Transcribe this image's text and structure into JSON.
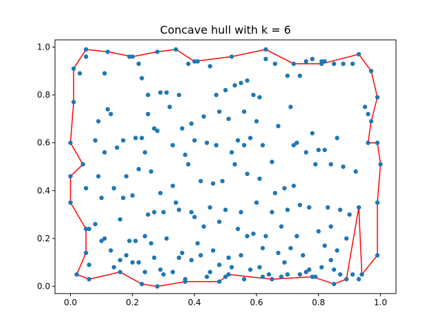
{
  "chart_data": {
    "type": "scatter",
    "title": "Concave hull with k = 6",
    "xlabel": "",
    "ylabel": "",
    "xlim": [
      -0.05,
      1.05
    ],
    "ylim": [
      -0.03,
      1.03
    ],
    "xticks": [
      "0.0",
      "0.2",
      "0.4",
      "0.6",
      "0.8",
      "1.0"
    ],
    "yticks": [
      "0.0",
      "0.2",
      "0.4",
      "0.6",
      "0.8",
      "1.0"
    ],
    "grid": false,
    "legend": "none",
    "colors": {
      "points": "#1f77b4",
      "hull": "#ff0000"
    },
    "series": [
      {
        "type": "line",
        "closed": true,
        "x": [
          0.05,
          0.12,
          0.2,
          0.28,
          0.34,
          0.4,
          0.52,
          0.63,
          0.72,
          0.81,
          0.93,
          0.97,
          0.99,
          0.97,
          0.96,
          0.99,
          1.0,
          0.99,
          0.99,
          0.94,
          0.93,
          0.89,
          0.85,
          0.78,
          0.65,
          0.51,
          0.48,
          0.37,
          0.28,
          0.23,
          0.16,
          0.06,
          0.02,
          0.05,
          0.05,
          0.0,
          0.0,
          0.04,
          0.0,
          0.01,
          0.01,
          0.05
        ],
        "y": [
          0.99,
          0.98,
          0.96,
          0.98,
          0.99,
          0.94,
          0.96,
          0.99,
          0.93,
          0.93,
          0.97,
          0.9,
          0.79,
          0.69,
          0.6,
          0.6,
          0.51,
          0.35,
          0.13,
          0.05,
          0.33,
          0.03,
          0.01,
          0.04,
          0.03,
          0.05,
          0.02,
          0.02,
          0.0,
          0.01,
          0.06,
          0.03,
          0.05,
          0.14,
          0.24,
          0.35,
          0.46,
          0.51,
          0.6,
          0.77,
          0.91,
          0.99
        ]
      },
      {
        "type": "scatter",
        "x": [
          0.05,
          0.12,
          0.2,
          0.28,
          0.34,
          0.4,
          0.52,
          0.63,
          0.72,
          0.81,
          0.93,
          0.97,
          0.99,
          0.97,
          0.96,
          0.99,
          1.0,
          0.99,
          0.99,
          0.94,
          0.93,
          0.89,
          0.85,
          0.78,
          0.65,
          0.51,
          0.48,
          0.37,
          0.28,
          0.23,
          0.16,
          0.06,
          0.02,
          0.05,
          0.05,
          0.0,
          0.0,
          0.04,
          0.0,
          0.01,
          0.01,
          0.05,
          0.05,
          0.03,
          0.11,
          0.19,
          0.22,
          0.23,
          0.25,
          0.29,
          0.31,
          0.35,
          0.38,
          0.41,
          0.45,
          0.47,
          0.5,
          0.53,
          0.55,
          0.57,
          0.59,
          0.61,
          0.63,
          0.66,
          0.7,
          0.74,
          0.76,
          0.78,
          0.81,
          0.82,
          0.85,
          0.88,
          0.91,
          0.12,
          0.13,
          0.09,
          0.17,
          0.23,
          0.25,
          0.27,
          0.32,
          0.36,
          0.39,
          0.43,
          0.48,
          0.51,
          0.54,
          0.56,
          0.6,
          0.67,
          0.71,
          0.73,
          0.8,
          0.95,
          0.96,
          0.08,
          0.11,
          0.15,
          0.21,
          0.24,
          0.28,
          0.33,
          0.37,
          0.4,
          0.44,
          0.47,
          0.52,
          0.56,
          0.58,
          0.62,
          0.65,
          0.72,
          0.78,
          0.82,
          0.86,
          0.09,
          0.18,
          0.22,
          0.26,
          0.29,
          0.33,
          0.38,
          0.42,
          0.46,
          0.49,
          0.53,
          0.57,
          0.61,
          0.66,
          0.69,
          0.72,
          0.76,
          0.79,
          0.84,
          0.88,
          0.92,
          0.05,
          0.1,
          0.14,
          0.17,
          0.2,
          0.25,
          0.3,
          0.35,
          0.4,
          0.45,
          0.5,
          0.55,
          0.6,
          0.65,
          0.7,
          0.74,
          0.77,
          0.83,
          0.87,
          0.9,
          0.08,
          0.11,
          0.16,
          0.19,
          0.24,
          0.27,
          0.34,
          0.39,
          0.43,
          0.48,
          0.54,
          0.59,
          0.63,
          0.68,
          0.73,
          0.8,
          0.84,
          0.89,
          0.06,
          0.13,
          0.18,
          0.21,
          0.26,
          0.31,
          0.36,
          0.41,
          0.46,
          0.51,
          0.57,
          0.62,
          0.67,
          0.71,
          0.75,
          0.82,
          0.86,
          0.1,
          0.16,
          0.22,
          0.29,
          0.35,
          0.42,
          0.48,
          0.55,
          0.61,
          0.69,
          0.77,
          0.84,
          0.06,
          0.14,
          0.2,
          0.27,
          0.33,
          0.39,
          0.45,
          0.52,
          0.58,
          0.64,
          0.7,
          0.76,
          0.81,
          0.85,
          0.91,
          0.24,
          0.3,
          0.37,
          0.44,
          0.5,
          0.56,
          0.62,
          0.68,
          0.74,
          0.79,
          0.87,
          0.93
        ],
        "y": [
          0.99,
          0.98,
          0.96,
          0.98,
          0.99,
          0.94,
          0.96,
          0.99,
          0.93,
          0.93,
          0.97,
          0.9,
          0.79,
          0.69,
          0.6,
          0.6,
          0.51,
          0.35,
          0.13,
          0.05,
          0.33,
          0.03,
          0.01,
          0.04,
          0.03,
          0.05,
          0.02,
          0.02,
          0.0,
          0.01,
          0.06,
          0.03,
          0.05,
          0.14,
          0.24,
          0.35,
          0.46,
          0.51,
          0.6,
          0.77,
          0.91,
          0.99,
          0.96,
          0.89,
          0.89,
          0.96,
          0.93,
          0.87,
          0.8,
          0.81,
          0.81,
          0.8,
          0.93,
          0.94,
          0.92,
          0.8,
          0.82,
          0.84,
          0.85,
          0.86,
          0.8,
          0.79,
          0.95,
          0.93,
          0.88,
          0.88,
          0.94,
          0.95,
          0.94,
          0.94,
          0.93,
          0.93,
          0.93,
          0.74,
          0.72,
          0.69,
          0.61,
          0.62,
          0.72,
          0.66,
          0.75,
          0.66,
          0.68,
          0.71,
          0.73,
          0.7,
          0.61,
          0.73,
          0.69,
          0.67,
          0.75,
          0.6,
          0.57,
          0.75,
          0.72,
          0.61,
          0.56,
          0.58,
          0.62,
          0.56,
          0.65,
          0.59,
          0.55,
          0.61,
          0.6,
          0.59,
          0.56,
          0.59,
          0.62,
          0.59,
          0.52,
          0.59,
          0.64,
          0.57,
          0.62,
          0.46,
          0.46,
          0.49,
          0.48,
          0.39,
          0.42,
          0.51,
          0.44,
          0.43,
          0.44,
          0.51,
          0.47,
          0.45,
          0.39,
          0.41,
          0.42,
          0.56,
          0.51,
          0.51,
          0.5,
          0.48,
          0.41,
          0.37,
          0.41,
          0.37,
          0.38,
          0.3,
          0.31,
          0.32,
          0.29,
          0.33,
          0.32,
          0.31,
          0.35,
          0.31,
          0.32,
          0.34,
          0.33,
          0.33,
          0.32,
          0.3,
          0.26,
          0.2,
          0.28,
          0.19,
          0.21,
          0.31,
          0.35,
          0.31,
          0.25,
          0.27,
          0.24,
          0.22,
          0.21,
          0.25,
          0.21,
          0.23,
          0.25,
          0.2,
          0.24,
          0.15,
          0.13,
          0.19,
          0.18,
          0.2,
          0.14,
          0.18,
          0.15,
          0.12,
          0.21,
          0.16,
          0.14,
          0.16,
          0.13,
          0.17,
          0.15,
          0.19,
          0.11,
          0.1,
          0.07,
          0.12,
          0.13,
          0.09,
          0.13,
          0.08,
          0.1,
          0.07,
          0.11,
          0.09,
          0.08,
          0.1,
          0.12,
          0.06,
          0.11,
          0.06,
          0.08,
          0.07,
          0.05,
          0.05,
          0.06,
          0.08,
          0.07,
          0.05,
          0.06,
          0.05,
          0.03,
          0.04,
          0.04,
          0.03,
          0.04,
          0.04,
          0.05,
          0.04,
          0.05,
          0.03
        ]
      }
    ]
  }
}
